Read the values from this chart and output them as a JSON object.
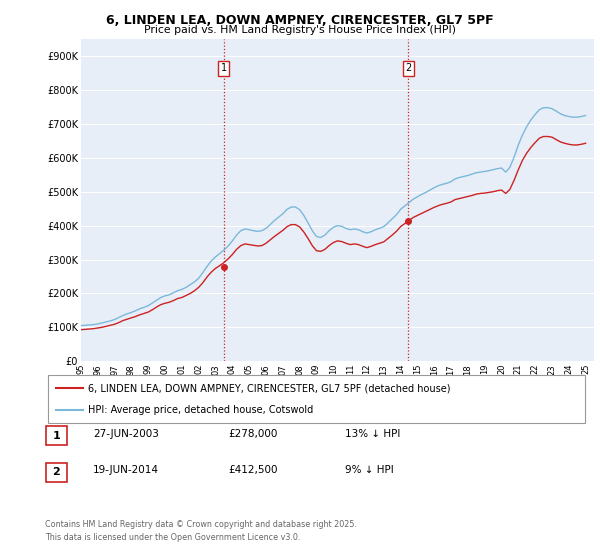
{
  "title1": "6, LINDEN LEA, DOWN AMPNEY, CIRENCESTER, GL7 5PF",
  "title2": "Price paid vs. HM Land Registry's House Price Index (HPI)",
  "ylim": [
    0,
    950000
  ],
  "yticks": [
    0,
    100000,
    200000,
    300000,
    400000,
    500000,
    600000,
    700000,
    800000,
    900000
  ],
  "ytick_labels": [
    "£0",
    "£100K",
    "£200K",
    "£300K",
    "£400K",
    "£500K",
    "£600K",
    "£700K",
    "£800K",
    "£900K"
  ],
  "xmin": 1995,
  "xmax": 2025.5,
  "sale1_date": 2003.49,
  "sale1_price": 278000,
  "sale2_date": 2014.47,
  "sale2_price": 412500,
  "hpi_color": "#7ab8d9",
  "price_color": "#cc2222",
  "background_color": "#e8eef8",
  "legend1_text": "6, LINDEN LEA, DOWN AMPNEY, CIRENCESTER, GL7 5PF (detached house)",
  "legend2_text": "HPI: Average price, detached house, Cotswold",
  "footer1": "Contains HM Land Registry data © Crown copyright and database right 2025.",
  "footer2": "This data is licensed under the Open Government Licence v3.0.",
  "table_entries": [
    {
      "num": "1",
      "date": "27-JUN-2003",
      "price": "£278,000",
      "change": "13% ↓ HPI"
    },
    {
      "num": "2",
      "date": "19-JUN-2014",
      "price": "£412,500",
      "change": "9% ↓ HPI"
    }
  ],
  "hpi_data_years": [
    1995.0,
    1995.25,
    1995.5,
    1995.75,
    1996.0,
    1996.25,
    1996.5,
    1996.75,
    1997.0,
    1997.25,
    1997.5,
    1997.75,
    1998.0,
    1998.25,
    1998.5,
    1998.75,
    1999.0,
    1999.25,
    1999.5,
    1999.75,
    2000.0,
    2000.25,
    2000.5,
    2000.75,
    2001.0,
    2001.25,
    2001.5,
    2001.75,
    2002.0,
    2002.25,
    2002.5,
    2002.75,
    2003.0,
    2003.25,
    2003.5,
    2003.75,
    2004.0,
    2004.25,
    2004.5,
    2004.75,
    2005.0,
    2005.25,
    2005.5,
    2005.75,
    2006.0,
    2006.25,
    2006.5,
    2006.75,
    2007.0,
    2007.25,
    2007.5,
    2007.75,
    2008.0,
    2008.25,
    2008.5,
    2008.75,
    2009.0,
    2009.25,
    2009.5,
    2009.75,
    2010.0,
    2010.25,
    2010.5,
    2010.75,
    2011.0,
    2011.25,
    2011.5,
    2011.75,
    2012.0,
    2012.25,
    2012.5,
    2012.75,
    2013.0,
    2013.25,
    2013.5,
    2013.75,
    2014.0,
    2014.25,
    2014.5,
    2014.75,
    2015.0,
    2015.25,
    2015.5,
    2015.75,
    2016.0,
    2016.25,
    2016.5,
    2016.75,
    2017.0,
    2017.25,
    2017.5,
    2017.75,
    2018.0,
    2018.25,
    2018.5,
    2018.75,
    2019.0,
    2019.25,
    2019.5,
    2019.75,
    2020.0,
    2020.25,
    2020.5,
    2020.75,
    2021.0,
    2021.25,
    2021.5,
    2021.75,
    2022.0,
    2022.25,
    2022.5,
    2022.75,
    2023.0,
    2023.25,
    2023.5,
    2023.75,
    2024.0,
    2024.25,
    2024.5,
    2024.75,
    2025.0
  ],
  "hpi_data_values": [
    105000,
    106000,
    107000,
    108000,
    110000,
    113000,
    116000,
    119000,
    123000,
    129000,
    135000,
    140000,
    144000,
    149000,
    155000,
    159000,
    164000,
    172000,
    180000,
    188000,
    193000,
    196000,
    202000,
    208000,
    212000,
    218000,
    226000,
    234000,
    245000,
    262000,
    280000,
    296000,
    308000,
    318000,
    328000,
    340000,
    355000,
    372000,
    385000,
    390000,
    388000,
    385000,
    383000,
    385000,
    392000,
    403000,
    415000,
    425000,
    435000,
    448000,
    455000,
    455000,
    447000,
    430000,
    408000,
    385000,
    368000,
    365000,
    372000,
    385000,
    395000,
    400000,
    398000,
    392000,
    388000,
    390000,
    388000,
    382000,
    378000,
    382000,
    388000,
    392000,
    397000,
    408000,
    420000,
    432000,
    448000,
    458000,
    468000,
    478000,
    485000,
    492000,
    498000,
    505000,
    512000,
    518000,
    522000,
    525000,
    530000,
    538000,
    542000,
    545000,
    548000,
    552000,
    556000,
    558000,
    560000,
    562000,
    565000,
    568000,
    570000,
    558000,
    572000,
    602000,
    638000,
    668000,
    692000,
    712000,
    728000,
    742000,
    748000,
    748000,
    745000,
    738000,
    730000,
    725000,
    722000,
    720000,
    720000,
    722000,
    725000
  ],
  "price_data_years": [
    1995.0,
    1995.25,
    1995.5,
    1995.75,
    1996.0,
    1996.25,
    1996.5,
    1996.75,
    1997.0,
    1997.25,
    1997.5,
    1997.75,
    1998.0,
    1998.25,
    1998.5,
    1998.75,
    1999.0,
    1999.25,
    1999.5,
    1999.75,
    2000.0,
    2000.25,
    2000.5,
    2000.75,
    2001.0,
    2001.25,
    2001.5,
    2001.75,
    2002.0,
    2002.25,
    2002.5,
    2002.75,
    2003.0,
    2003.25,
    2003.5,
    2003.75,
    2004.0,
    2004.25,
    2004.5,
    2004.75,
    2005.0,
    2005.25,
    2005.5,
    2005.75,
    2006.0,
    2006.25,
    2006.5,
    2006.75,
    2007.0,
    2007.25,
    2007.5,
    2007.75,
    2008.0,
    2008.25,
    2008.5,
    2008.75,
    2009.0,
    2009.25,
    2009.5,
    2009.75,
    2010.0,
    2010.25,
    2010.5,
    2010.75,
    2011.0,
    2011.25,
    2011.5,
    2011.75,
    2012.0,
    2012.25,
    2012.5,
    2012.75,
    2013.0,
    2013.25,
    2013.5,
    2013.75,
    2014.0,
    2014.25,
    2014.5,
    2014.75,
    2015.0,
    2015.25,
    2015.5,
    2015.75,
    2016.0,
    2016.25,
    2016.5,
    2016.75,
    2017.0,
    2017.25,
    2017.5,
    2017.75,
    2018.0,
    2018.25,
    2018.5,
    2018.75,
    2019.0,
    2019.25,
    2019.5,
    2019.75,
    2020.0,
    2020.25,
    2020.5,
    2020.75,
    2021.0,
    2021.25,
    2021.5,
    2021.75,
    2022.0,
    2022.25,
    2022.5,
    2022.75,
    2023.0,
    2023.25,
    2023.5,
    2023.75,
    2024.0,
    2024.25,
    2024.5,
    2024.75,
    2025.0
  ],
  "price_data_values": [
    93000,
    94000,
    95000,
    96000,
    98000,
    100000,
    103000,
    106000,
    109000,
    114000,
    120000,
    124000,
    128000,
    132000,
    137000,
    141000,
    145000,
    152000,
    160000,
    167000,
    171000,
    174000,
    179000,
    185000,
    188000,
    194000,
    200000,
    208000,
    218000,
    232000,
    249000,
    263000,
    274000,
    282000,
    291000,
    302000,
    315000,
    330000,
    341000,
    346000,
    344000,
    342000,
    340000,
    341000,
    348000,
    358000,
    368000,
    377000,
    386000,
    397000,
    403000,
    403000,
    396000,
    381000,
    362000,
    341000,
    326000,
    324000,
    330000,
    341000,
    350000,
    355000,
    353000,
    348000,
    344000,
    346000,
    344000,
    339000,
    335000,
    339000,
    344000,
    348000,
    352000,
    362000,
    372000,
    383000,
    397000,
    406000,
    415000,
    424000,
    430000,
    436000,
    442000,
    448000,
    454000,
    459000,
    463000,
    466000,
    470000,
    477000,
    480000,
    483000,
    486000,
    489000,
    493000,
    495000,
    496000,
    498000,
    500000,
    503000,
    505000,
    495000,
    507000,
    534000,
    565000,
    593000,
    614000,
    631000,
    645000,
    658000,
    663000,
    663000,
    661000,
    654000,
    647000,
    643000,
    640000,
    638000,
    638000,
    640000,
    643000
  ]
}
